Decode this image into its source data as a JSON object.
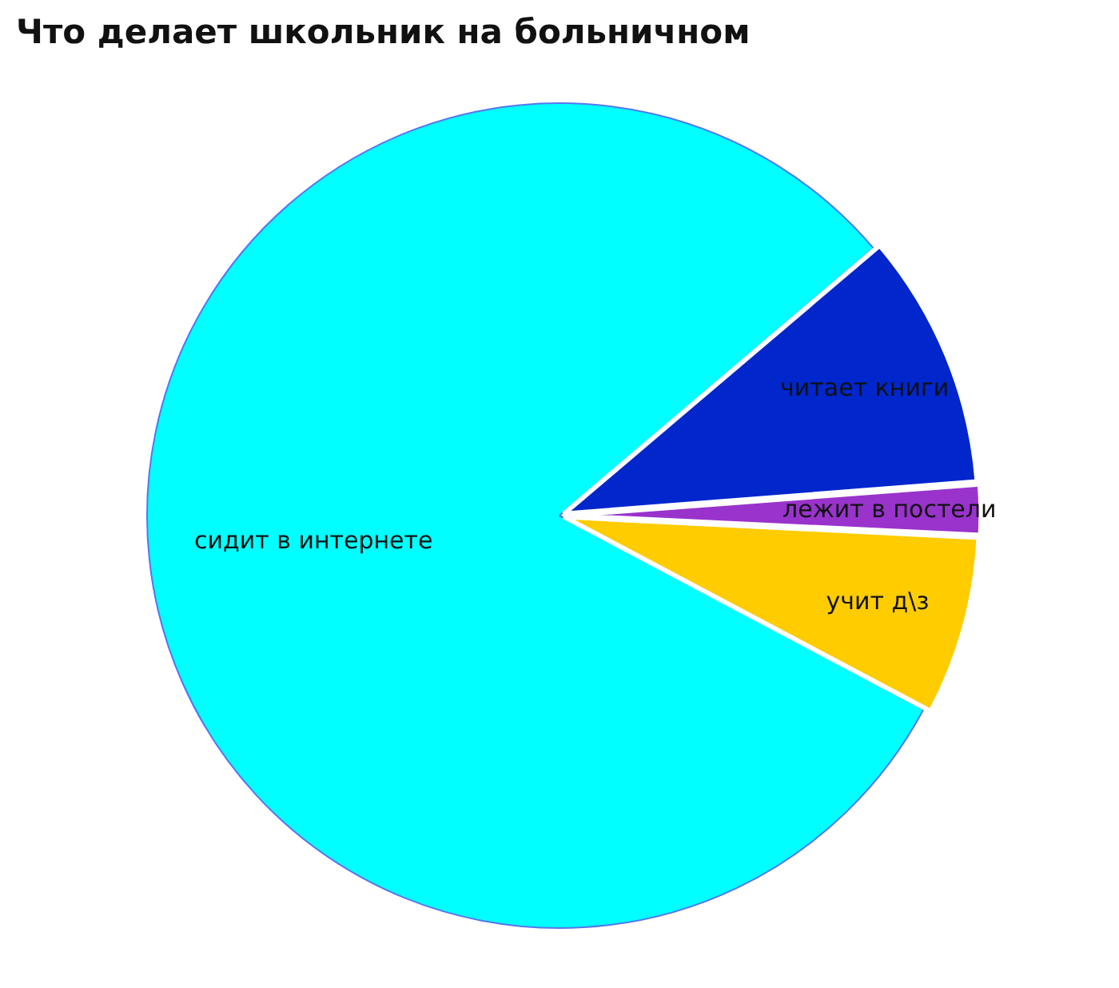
{
  "chart_data": {
    "type": "pie",
    "title": "Что делает школьник на больничном",
    "categories": [
      "сидит в интернете",
      "читает книги",
      "лежит в постели",
      "учит д\\з"
    ],
    "values": [
      81,
      10,
      2,
      7
    ],
    "colors": [
      "#00ffff",
      "#0026cc",
      "#9933cc",
      "#ffcc00"
    ],
    "legend": false
  }
}
